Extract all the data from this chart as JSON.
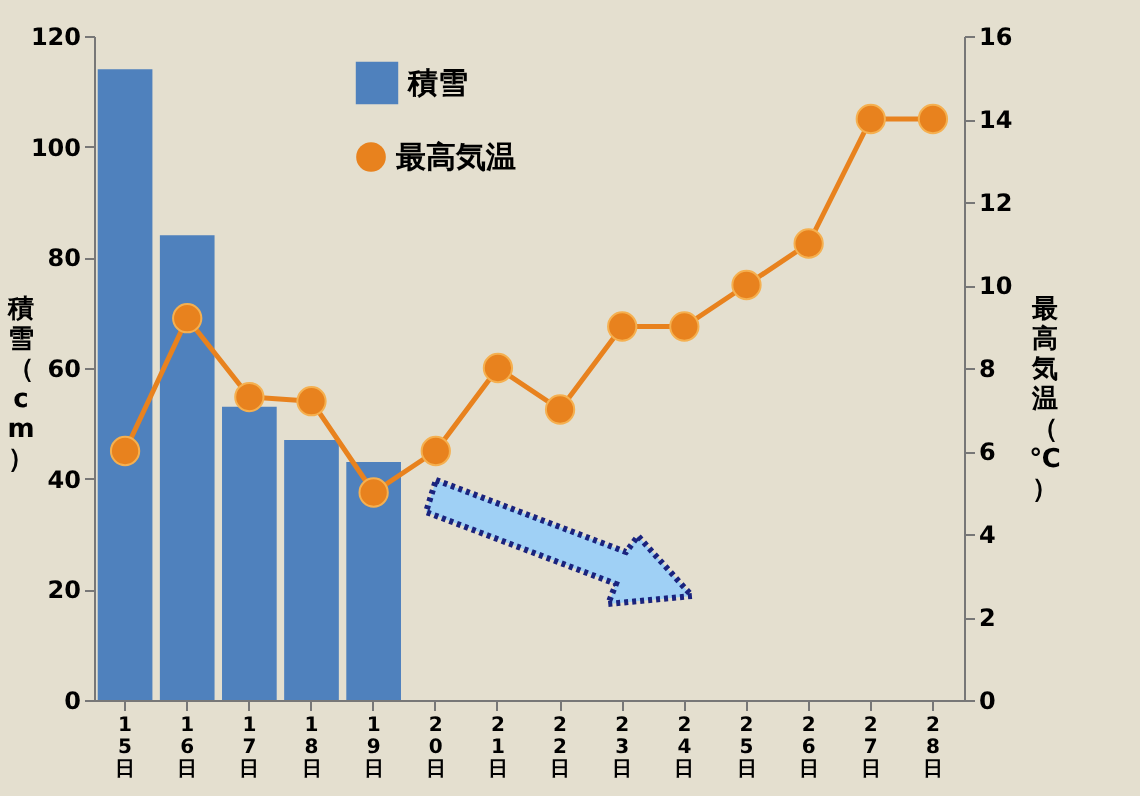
{
  "chart_data": {
    "type": "bar",
    "categories": [
      "15日",
      "16日",
      "17日",
      "18日",
      "19日",
      "20日",
      "21日",
      "22日",
      "23日",
      "24日",
      "25日",
      "26日",
      "27日",
      "28日"
    ],
    "series": [
      {
        "name": "積雪",
        "color": "#4f81bd",
        "values": [
          114,
          84,
          53,
          47,
          43,
          null,
          null,
          null,
          null,
          null,
          null,
          null,
          null,
          null
        ]
      },
      {
        "name": "最高気温",
        "type": "line",
        "axis": "y2",
        "color": "#e8821e",
        "marker": "circle",
        "values": [
          6,
          9.2,
          7.3,
          7.2,
          5,
          6,
          8,
          7,
          9,
          9,
          10,
          11,
          14,
          14
        ]
      }
    ],
    "ylabel": "積雪（cm）",
    "y2label": "最高気温（℃）",
    "ylim": [
      0,
      120
    ],
    "yticks": [
      0,
      20,
      40,
      60,
      80,
      100,
      120
    ],
    "y2lim": [
      0,
      16
    ],
    "y2ticks": [
      0,
      2,
      4,
      6,
      8,
      10,
      12,
      14,
      16
    ],
    "legend": "top left",
    "grid": false
  }
}
